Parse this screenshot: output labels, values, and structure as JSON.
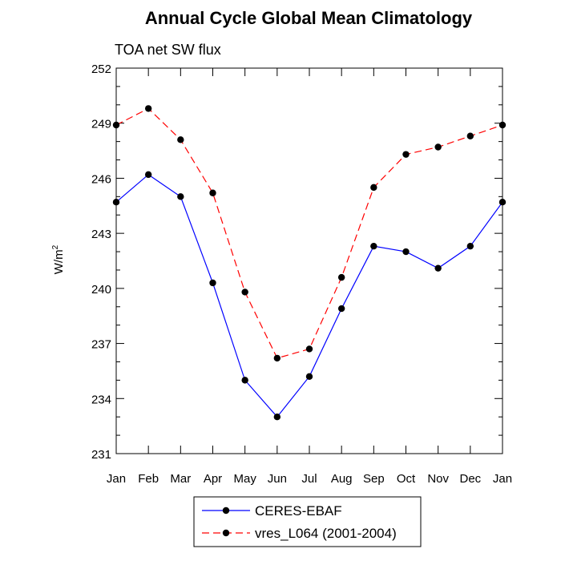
{
  "chart_data": {
    "type": "line",
    "title": "Annual Cycle Global Mean Climatology",
    "subtitle": "TOA net SW flux",
    "ylabel": "W/m",
    "ylabel_superscript": "2",
    "xlabel": "",
    "ylim": [
      231,
      252
    ],
    "yticks": [
      "231",
      "234",
      "237",
      "240",
      "243",
      "246",
      "249",
      "252"
    ],
    "categories": [
      "Jan",
      "Feb",
      "Mar",
      "Apr",
      "May",
      "Jun",
      "Jul",
      "Aug",
      "Sep",
      "Oct",
      "Nov",
      "Dec",
      "Jan"
    ],
    "series": [
      {
        "name": "CERES-EBAF",
        "color": "#0000ff",
        "dash": "solid",
        "values": [
          244.7,
          246.2,
          245.0,
          240.3,
          235.0,
          233.0,
          235.2,
          238.9,
          242.3,
          242.0,
          241.1,
          242.3,
          244.7
        ]
      },
      {
        "name": "vres_L064 (2001-2004)",
        "color": "#ff0000",
        "dash": "dashed",
        "values": [
          248.9,
          249.8,
          248.1,
          245.2,
          239.8,
          236.2,
          236.7,
          240.6,
          245.5,
          247.3,
          247.7,
          248.3,
          248.9
        ]
      }
    ],
    "legend_position": "bottom-center",
    "grid": false
  }
}
